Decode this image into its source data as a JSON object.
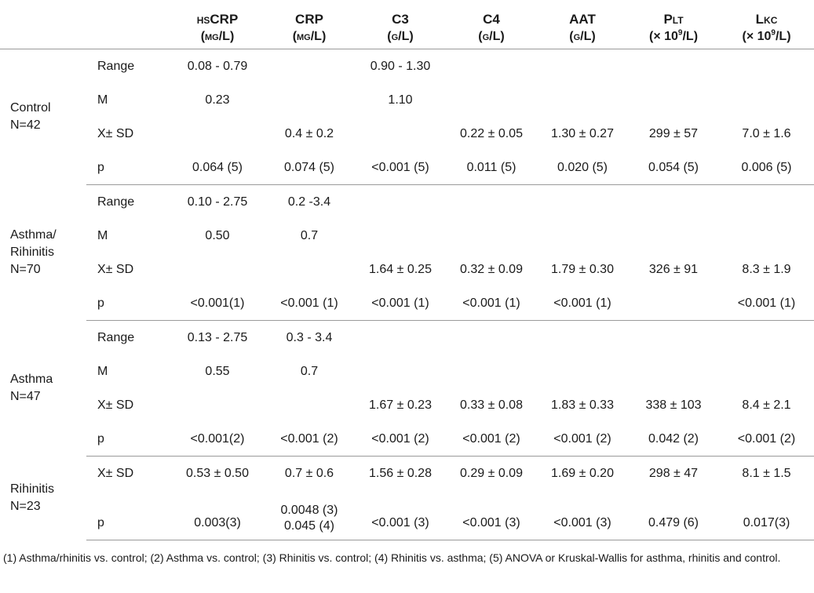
{
  "headers": {
    "hscrp": {
      "name": "hsCRP",
      "unit": "(mg/L)"
    },
    "crp": {
      "name": "CRP",
      "unit": "(mg/L)"
    },
    "c3": {
      "name": "C3",
      "unit": "(g/L)"
    },
    "c4": {
      "name": "C4",
      "unit": "(g/L)"
    },
    "aat": {
      "name": "AAT",
      "unit": "(g/L)"
    },
    "plt": {
      "name": "Plt",
      "unit_prefix": "(× 10",
      "unit_exp": "9",
      "unit_suffix": "/L)"
    },
    "lkc": {
      "name": "Lkc",
      "unit_prefix": "(× 10",
      "unit_exp": "9",
      "unit_suffix": "/L)"
    }
  },
  "groups": {
    "control": {
      "name": "Control",
      "n": "N=42",
      "range": {
        "stat": "Range",
        "hscrp": "0.08 - 0.79",
        "crp": "",
        "c3": "0.90 - 1.30",
        "c4": "",
        "aat": "",
        "plt": "",
        "lkc": ""
      },
      "m": {
        "stat": "M",
        "hscrp": "0.23",
        "crp": "",
        "c3": "1.10",
        "c4": "",
        "aat": "",
        "plt": "",
        "lkc": ""
      },
      "xsd": {
        "stat": "X± SD",
        "hscrp": "",
        "crp": "0.4 ± 0.2",
        "c3": "",
        "c4": "0.22 ± 0.05",
        "aat": "1.30 ± 0.27",
        "plt": "299 ± 57",
        "lkc": "7.0 ± 1.6"
      },
      "p": {
        "stat": "p",
        "hscrp": "0.064 (5)",
        "crp": "0.074 (5)",
        "c3": "<0.001 (5)",
        "c4": "0.011 (5)",
        "aat": "0.020 (5)",
        "plt": "0.054 (5)",
        "lkc": "0.006 (5)"
      }
    },
    "asthma_rhinitis": {
      "name_line1": "Asthma/",
      "name_line2": "Rihinitis",
      "n": "N=70",
      "range": {
        "stat": "Range",
        "hscrp": "0.10 - 2.75",
        "crp": "0.2 -3.4",
        "c3": "",
        "c4": "",
        "aat": "",
        "plt": "",
        "lkc": ""
      },
      "m": {
        "stat": "M",
        "hscrp": "0.50",
        "crp": "0.7",
        "c3": "",
        "c4": "",
        "aat": "",
        "plt": "",
        "lkc": ""
      },
      "xsd": {
        "stat": "X± SD",
        "hscrp": "",
        "crp": "",
        "c3": "1.64 ± 0.25",
        "c4": "0.32 ± 0.09",
        "aat": "1.79 ± 0.30",
        "plt": "326 ± 91",
        "lkc": "8.3 ± 1.9"
      },
      "p": {
        "stat": "p",
        "hscrp": "<0.001(1)",
        "crp": "<0.001 (1)",
        "c3": "<0.001 (1)",
        "c4": "<0.001 (1)",
        "aat": "<0.001 (1)",
        "plt": "",
        "lkc": "<0.001 (1)"
      }
    },
    "asthma": {
      "name": "Asthma",
      "n": "N=47",
      "range": {
        "stat": "Range",
        "hscrp": "0.13 - 2.75",
        "crp": "0.3 - 3.4",
        "c3": "",
        "c4": "",
        "aat": "",
        "plt": "",
        "lkc": ""
      },
      "m": {
        "stat": "M",
        "hscrp": "0.55",
        "crp": "0.7",
        "c3": "",
        "c4": "",
        "aat": "",
        "plt": "",
        "lkc": ""
      },
      "xsd": {
        "stat": "X± SD",
        "hscrp": "",
        "crp": "",
        "c3": "1.67 ± 0.23",
        "c4": "0.33 ± 0.08",
        "aat": "1.83 ± 0.33",
        "plt": "338 ± 103",
        "lkc": "8.4 ± 2.1"
      },
      "p": {
        "stat": "p",
        "hscrp": "<0.001(2)",
        "crp": "<0.001 (2)",
        "c3": "<0.001 (2)",
        "c4": "<0.001 (2)",
        "aat": "<0.001 (2)",
        "plt": "0.042 (2)",
        "lkc": "<0.001 (2)"
      }
    },
    "rhinitis": {
      "name": "Rihinitis",
      "n": "N=23",
      "xsd": {
        "stat": "X± SD",
        "hscrp": "0.53 ± 0.50",
        "crp": "0.7 ± 0.6",
        "c3": "1.56 ± 0.28",
        "c4": "0.29 ± 0.09",
        "aat": "1.69 ± 0.20",
        "plt": "298 ± 47",
        "lkc": "8.1 ± 1.5"
      },
      "p": {
        "stat": "p",
        "hscrp": "0.003(3)",
        "crp_line1": "0.0048 (3)",
        "crp_line2": "0.045 (4)",
        "c3": "<0.001 (3)",
        "c4": "<0.001 (3)",
        "aat": "<0.001 (3)",
        "plt": "0.479 (6)",
        "lkc": "0.017(3)"
      }
    }
  },
  "footnote": "(1) Asthma/rhinitis vs. control; (2) Asthma vs. control; (3) Rhinitis vs. control; (4) Rhinitis vs. asthma; (5) ANOVA or Kruskal-Wallis for asthma, rhinitis and control."
}
